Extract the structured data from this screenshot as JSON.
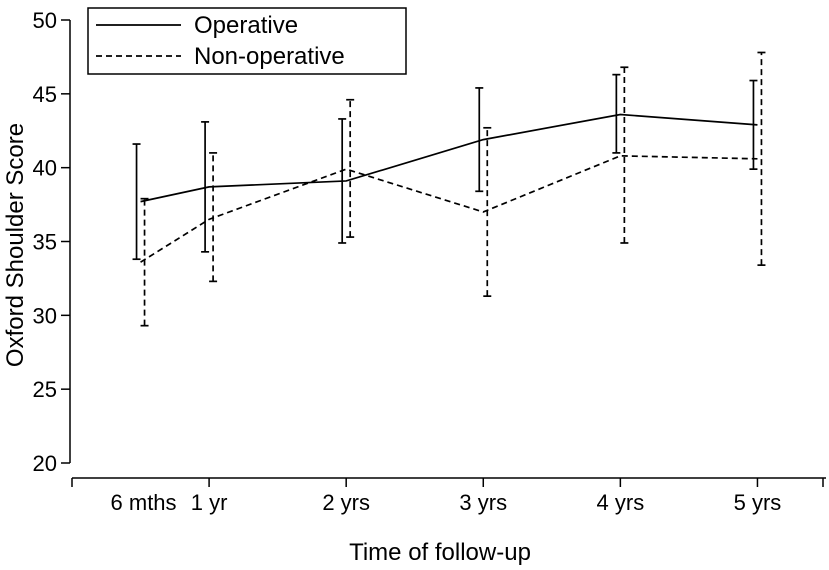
{
  "chart_data": {
    "type": "line",
    "title": "",
    "xlabel": "Time of follow-up",
    "ylabel": "Oxford Shoulder Score",
    "ylim": [
      20,
      50
    ],
    "yticks": [
      20,
      25,
      30,
      35,
      40,
      45,
      50
    ],
    "categories": [
      "6 mths",
      "1 yr",
      "2 yrs",
      "3 yrs",
      "4 yrs",
      "5 yrs"
    ],
    "x_months": [
      6,
      12,
      24,
      36,
      48,
      60
    ],
    "xlim_months": [
      0,
      66
    ],
    "legend_position": "top-left",
    "series": [
      {
        "name": "Operative",
        "style": "solid",
        "values": [
          37.7,
          38.7,
          39.1,
          41.9,
          43.6,
          42.9
        ],
        "lower": [
          33.8,
          34.3,
          34.9,
          38.4,
          41.0,
          39.9
        ],
        "upper": [
          41.6,
          43.1,
          43.3,
          45.4,
          46.3,
          45.9
        ]
      },
      {
        "name": "Non-operative",
        "style": "dashed",
        "values": [
          33.6,
          36.5,
          39.9,
          37.0,
          40.8,
          40.6
        ],
        "lower": [
          29.3,
          32.3,
          35.3,
          31.3,
          34.9,
          33.4
        ],
        "upper": [
          37.9,
          41.0,
          44.6,
          42.7,
          46.8,
          47.8
        ]
      }
    ],
    "color": "#000000"
  }
}
